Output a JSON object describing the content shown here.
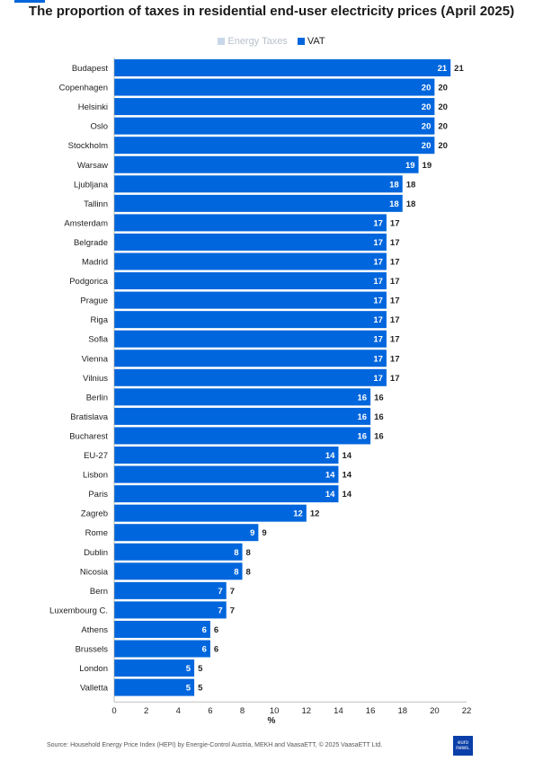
{
  "chart_data": {
    "type": "bar",
    "orientation": "horizontal",
    "stacked": true,
    "title": "The proportion of taxes in residential end-user electricity prices (April 2025)",
    "xlabel": "%",
    "ylabel": "",
    "xlim": [
      0,
      22
    ],
    "xticks": [
      0,
      2,
      4,
      6,
      8,
      10,
      12,
      14,
      16,
      18,
      20,
      22
    ],
    "grid": false,
    "legend_position": "top",
    "categories": [
      "Budapest",
      "Copenhagen",
      "Helsinki",
      "Oslo",
      "Stockholm",
      "Warsaw",
      "Ljubljana",
      "Tallinn",
      "Amsterdam",
      "Belgrade",
      "Madrid",
      "Podgorica",
      "Prague",
      "Riga",
      "Sofia",
      "Vienna",
      "Vilnius",
      "Berlin",
      "Bratislava",
      "Bucharest",
      "EU-27",
      "Lisbon",
      "Paris",
      "Zagreb",
      "Rome",
      "Dublin",
      "Nicosia",
      "Bern",
      "Luxembourg C.",
      "Athens",
      "Brussels",
      "London",
      "Valletta"
    ],
    "series": [
      {
        "name": "Energy Taxes",
        "color": "#c8d8ea",
        "values": [
          0,
          0,
          0,
          0,
          0,
          0,
          0,
          0,
          0,
          0,
          0,
          0,
          0,
          0,
          0,
          0,
          0,
          0,
          0,
          0,
          0,
          0,
          0,
          0,
          0,
          0,
          0,
          0,
          0,
          0,
          0,
          0,
          0
        ]
      },
      {
        "name": "VAT",
        "color": "#0066dd",
        "values": [
          21,
          20,
          20,
          20,
          20,
          19,
          18,
          18,
          17,
          17,
          17,
          17,
          17,
          17,
          17,
          17,
          17,
          16,
          16,
          16,
          14,
          14,
          14,
          12,
          9,
          8,
          8,
          7,
          7,
          6,
          6,
          5,
          5
        ]
      }
    ],
    "totals": [
      21,
      20,
      20,
      20,
      20,
      19,
      18,
      18,
      17,
      17,
      17,
      17,
      17,
      17,
      17,
      17,
      17,
      16,
      16,
      16,
      14,
      14,
      14,
      12,
      9,
      8,
      8,
      7,
      7,
      6,
      6,
      5,
      5
    ]
  },
  "source": "Source: Household Energy Price Index (HEPI) by Energie-Control Austria, MEKH and VaasaETT, © 2025 VaasaETT Ltd.",
  "logo": {
    "line1": "euro",
    "line2": "news."
  }
}
